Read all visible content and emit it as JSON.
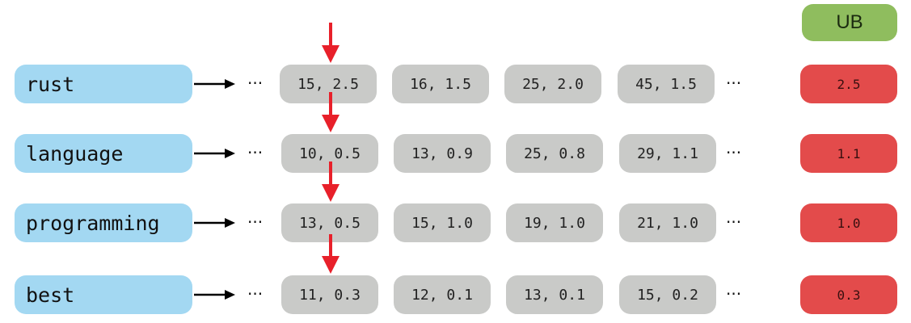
{
  "ub_header": "UB",
  "ellipsis": "···",
  "colors": {
    "term_fill": "#a3d8f2",
    "posting_fill": "#c9cac8",
    "ub_fill": "#e34b4b",
    "ub_header_fill": "#8fbd5e",
    "pointer_arrow": "#e8202a",
    "link_arrow": "#000000"
  },
  "rows": [
    {
      "term": "rust",
      "postings": [
        "15, 2.5",
        "16, 1.5",
        "25, 2.0",
        "45, 1.5"
      ],
      "ub": "2.5"
    },
    {
      "term": "language",
      "postings": [
        "10, 0.5",
        "13, 0.9",
        "25, 0.8",
        "29, 1.1"
      ],
      "ub": "1.1"
    },
    {
      "term": "programming",
      "postings": [
        "13, 0.5",
        "15, 1.0",
        "19, 1.0",
        "21, 1.0"
      ],
      "ub": "1.0"
    },
    {
      "term": "best",
      "postings": [
        "11, 0.3",
        "12, 0.1",
        "13, 0.1",
        "15, 0.2"
      ],
      "ub": "0.3"
    }
  ]
}
